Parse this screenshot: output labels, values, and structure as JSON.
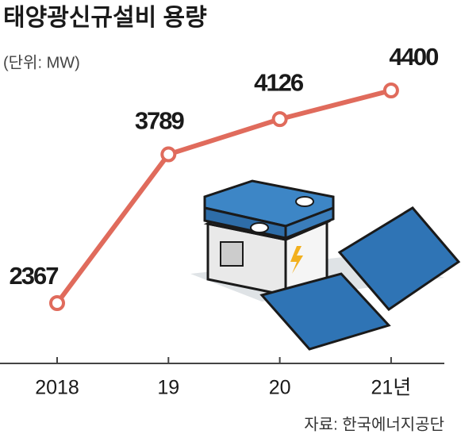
{
  "chart_data": {
    "type": "line",
    "title": "태양광신규설비 용량",
    "subtitle": "(단위: MW)",
    "categories": [
      "2018",
      "19",
      "20",
      "21년"
    ],
    "values": [
      2367,
      3789,
      4126,
      4400
    ],
    "color": "#e06b5c",
    "source": "자료: 한국에너지공단"
  }
}
